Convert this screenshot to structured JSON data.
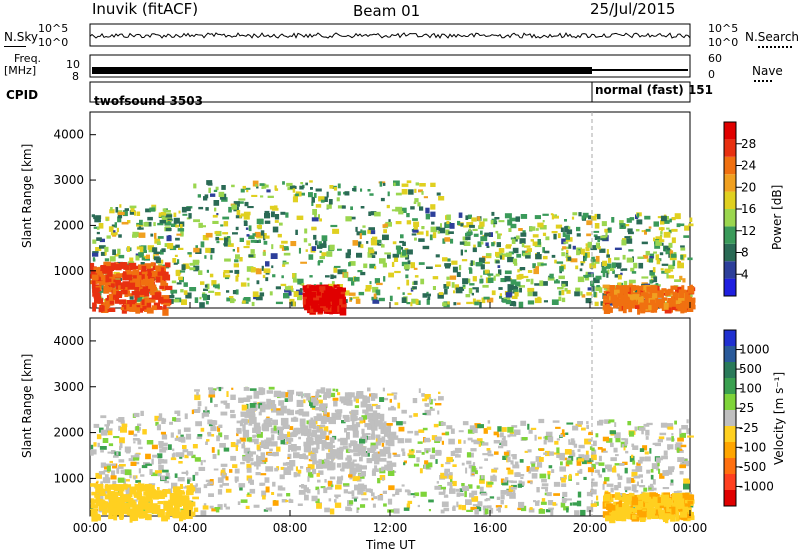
{
  "header": {
    "station": "Inuvik (fitACF)",
    "beam": "Beam 01",
    "date": "25/Jul/2015"
  },
  "strip_panels": {
    "nsky": {
      "label": "N.Sky",
      "right_label": "N.Search",
      "ticks": [
        "10^5",
        "10^0"
      ]
    },
    "freq": {
      "label_line1": "Freq.",
      "label_line2": "[MHz]",
      "ticks": [
        "10",
        "8"
      ],
      "right_label": "Nave",
      "right_ticks": [
        "60",
        "0"
      ]
    },
    "cpid": {
      "label": "CPID",
      "mode1": "twofsound 3503",
      "mode2": "normal (fast) 151"
    }
  },
  "colors": {
    "power": [
      "#1f1fe0",
      "#2d3f9a",
      "#2a6a55",
      "#3a9a5a",
      "#9bd64f",
      "#e0d020",
      "#f0a020",
      "#f07010",
      "#e83010",
      "#e00000"
    ],
    "velocity": [
      "#e00000",
      "#ff4020",
      "#ff7010",
      "#ffa500",
      "#ffd020",
      "#bfbfbf",
      "#7fd43a",
      "#3aa050",
      "#2a7a5a",
      "#2a5a9a",
      "#2030d0"
    ]
  },
  "chart_data": [
    {
      "type": "heatmap",
      "title": "",
      "xlabel": "",
      "ylabel": "Slant Range [km]",
      "x_ticks": [
        "00:00",
        "04:00",
        "08:00",
        "12:00",
        "16:00",
        "20:00",
        "00:00"
      ],
      "y_ticks": [
        "4000",
        "3000",
        "2000",
        "1000"
      ],
      "ylim": [
        180,
        4500
      ],
      "colorbar": {
        "label": "Power [dB]",
        "ticks": [
          "28",
          "24",
          "20",
          "16",
          "12",
          "8",
          "4"
        ],
        "range": [
          0,
          32
        ]
      },
      "description_regions": [
        {
          "t_start": 0.0,
          "t_end": 3.0,
          "range_start": 180,
          "range_end": 1200,
          "value": 26
        },
        {
          "t_start": 8.5,
          "t_end": 10.0,
          "range_start": 180,
          "range_end": 700,
          "value": 30
        },
        {
          "t_start": 20.5,
          "t_end": 24.0,
          "range_start": 180,
          "range_end": 700,
          "value": 24
        }
      ]
    },
    {
      "type": "heatmap",
      "title": "",
      "xlabel": "Time UT",
      "ylabel": "Slant Range [km]",
      "x_ticks": [
        "00:00",
        "04:00",
        "08:00",
        "12:00",
        "16:00",
        "20:00",
        "00:00"
      ],
      "y_ticks": [
        "4000",
        "3000",
        "2000",
        "1000"
      ],
      "ylim": [
        180,
        4500
      ],
      "colorbar": {
        "label": "Velocity [m s⁻¹]",
        "ticks": [
          "1000",
          "500",
          "100",
          "25",
          "-25",
          "-100",
          "-500",
          "-1000"
        ],
        "range": [
          -1200,
          1200
        ]
      },
      "description_regions": [
        {
          "t_start": 0.0,
          "t_end": 4.0,
          "range_start": 180,
          "range_end": 900,
          "value": -200
        },
        {
          "t_start": 6.0,
          "t_end": 12.0,
          "range_start": 1200,
          "range_end": 3000,
          "value": 0
        },
        {
          "t_start": 20.5,
          "t_end": 24.0,
          "range_start": 180,
          "range_end": 700,
          "value": -300
        }
      ]
    }
  ]
}
